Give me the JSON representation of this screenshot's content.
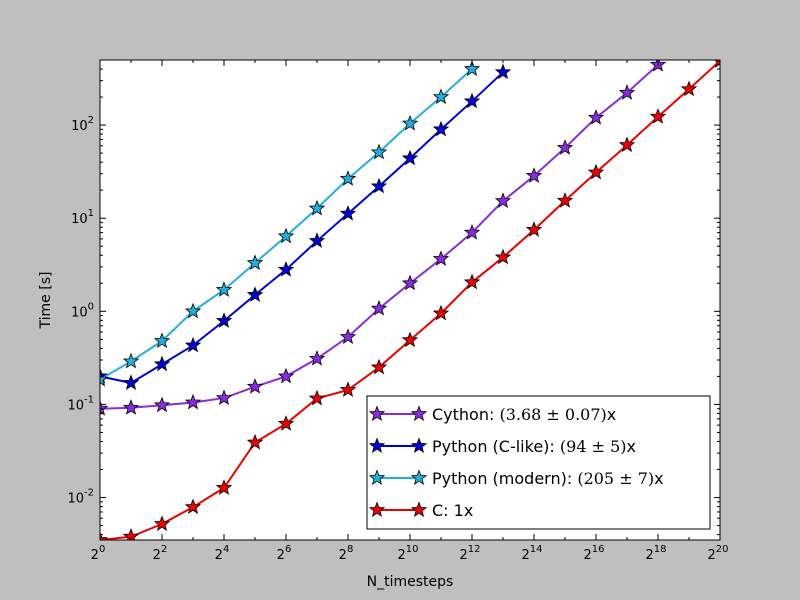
{
  "chart_data": {
    "type": "line",
    "title": "",
    "xlabel": "N_timesteps",
    "ylabel": "Time [s]",
    "x_scale": "log2",
    "y_scale": "log10",
    "xlim": [
      1,
      1048576
    ],
    "ylim": [
      0.0035,
      500
    ],
    "grid": false,
    "legend_position": "lower-right",
    "x_ticks": [
      {
        "base": "2",
        "exp": "0"
      },
      {
        "base": "2",
        "exp": "2"
      },
      {
        "base": "2",
        "exp": "4"
      },
      {
        "base": "2",
        "exp": "6"
      },
      {
        "base": "2",
        "exp": "8"
      },
      {
        "base": "2",
        "exp": "10"
      },
      {
        "base": "2",
        "exp": "12"
      },
      {
        "base": "2",
        "exp": "14"
      },
      {
        "base": "2",
        "exp": "16"
      },
      {
        "base": "2",
        "exp": "18"
      },
      {
        "base": "2",
        "exp": "20"
      }
    ],
    "y_ticks": [
      {
        "base": "10",
        "exp": "-2"
      },
      {
        "base": "10",
        "exp": "-1"
      },
      {
        "base": "10",
        "exp": "0"
      },
      {
        "base": "10",
        "exp": "1"
      },
      {
        "base": "10",
        "exp": "2"
      }
    ],
    "series": [
      {
        "name": "Cython:",
        "legend_math": "(3.68 ± 0.07)",
        "legend_suffix": "x",
        "color": "#8a2be2",
        "x": [
          1,
          2,
          4,
          8,
          16,
          32,
          64,
          128,
          256,
          512,
          1024,
          2048,
          4096,
          8192,
          16384,
          32768,
          65536,
          131072,
          262144
        ],
        "y": [
          0.09,
          0.092,
          0.098,
          0.105,
          0.117,
          0.155,
          0.2,
          0.31,
          0.53,
          1.07,
          2.0,
          3.65,
          7.0,
          15.3,
          28.5,
          57.0,
          120.0,
          222.0,
          445.0
        ]
      },
      {
        "name": "Python (C-like):",
        "legend_math": "(94 ± 5)",
        "legend_suffix": "x",
        "color": "#0000dd",
        "x": [
          1,
          2,
          4,
          8,
          16,
          32,
          64,
          128,
          256,
          512,
          1024,
          2048,
          4096,
          8192
        ],
        "y": [
          0.2,
          0.17,
          0.27,
          0.43,
          0.79,
          1.5,
          2.8,
          5.7,
          11.2,
          22.0,
          44.0,
          90.0,
          180.0,
          370.0
        ]
      },
      {
        "name": "Python (modern):",
        "legend_math": "(205 ± 7)",
        "legend_suffix": "x",
        "color": "#20b0e0",
        "x": [
          1,
          2,
          4,
          8,
          16,
          32,
          64,
          128,
          256,
          512,
          1024,
          2048,
          4096
        ],
        "y": [
          0.185,
          0.29,
          0.48,
          1.0,
          1.7,
          3.3,
          6.4,
          12.7,
          26.5,
          51.0,
          104.0,
          200.0,
          400.0
        ]
      },
      {
        "name": "C:",
        "legend_math": "",
        "legend_suffix": "1x",
        "color": "#ee0000",
        "x": [
          1,
          2,
          4,
          8,
          16,
          32,
          64,
          128,
          256,
          512,
          1024,
          2048,
          4096,
          8192,
          16384,
          32768,
          65536,
          131072,
          262144,
          524288,
          1048576
        ],
        "y": [
          0.0035,
          0.0038,
          0.0052,
          0.0079,
          0.0127,
          0.039,
          0.062,
          0.116,
          0.143,
          0.25,
          0.49,
          0.95,
          2.05,
          3.8,
          7.5,
          15.4,
          31.0,
          61.0,
          123.0,
          243.0,
          490.0
        ]
      }
    ]
  }
}
